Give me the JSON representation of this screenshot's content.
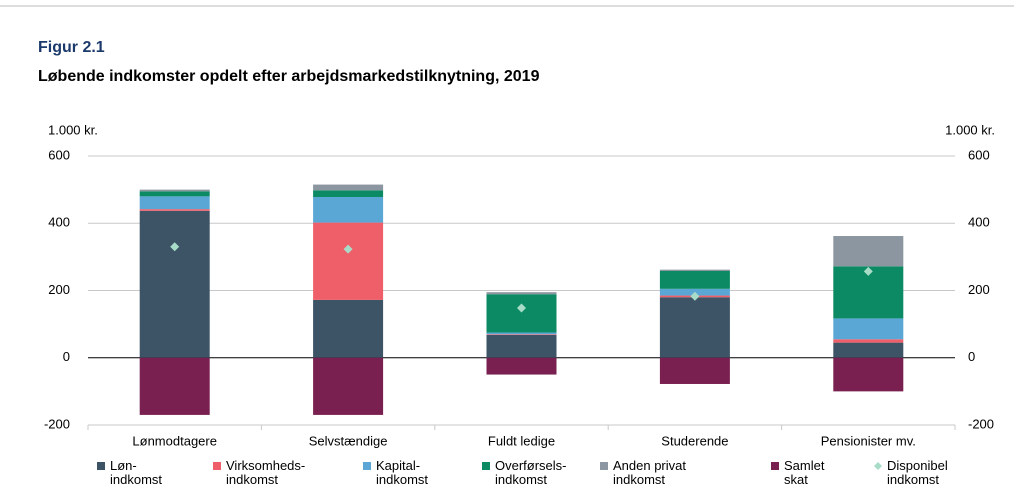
{
  "chart_data": {
    "type": "bar",
    "title": "Figur 2.1",
    "subtitle": "Løbende indkomster opdelt efter arbejdsmarkedstilknytning, 2019",
    "y_label": "1.000 kr.",
    "y2_label": "1.000 kr.",
    "categories": [
      "Lønmodtagere",
      "Selvstændige",
      "Fuldt ledige",
      "Studerende",
      "Pensionister mv."
    ],
    "series": [
      {
        "name": "Løn-\nindkomst",
        "color": "#3d5466",
        "values": [
          437,
          172,
          68,
          180,
          45
        ]
      },
      {
        "name": "Virksomheds-\nindkomst",
        "color": "#ee5f6a",
        "values": [
          5,
          230,
          2,
          5,
          10
        ]
      },
      {
        "name": "Kapital-\nindkomst",
        "color": "#5aa7d6",
        "values": [
          38,
          76,
          5,
          20,
          62
        ]
      },
      {
        "name": "Overførsels-\nindkomst",
        "color": "#0b8a63",
        "values": [
          15,
          20,
          114,
          53,
          155
        ]
      },
      {
        "name": "Anden privat\nindkomst",
        "color": "#8c96a0",
        "values": [
          5,
          17,
          6,
          4,
          90
        ]
      },
      {
        "name": "Samlet\nskat",
        "color": "#7a2050",
        "values": [
          -170,
          -170,
          -50,
          -78,
          -100
        ]
      },
      {
        "name": "Disponibel\nindkomst",
        "color": "#a8dcc8",
        "type": "scatter",
        "values": [
          330,
          323,
          148,
          183,
          257
        ]
      }
    ],
    "stacked": true,
    "ylim": [
      -200,
      600
    ],
    "yticks": [
      -200,
      0,
      200,
      400,
      600
    ],
    "y2lim": [
      -200,
      600
    ],
    "y2ticks": [
      -200,
      0,
      200,
      400,
      600
    ],
    "grid": true
  }
}
